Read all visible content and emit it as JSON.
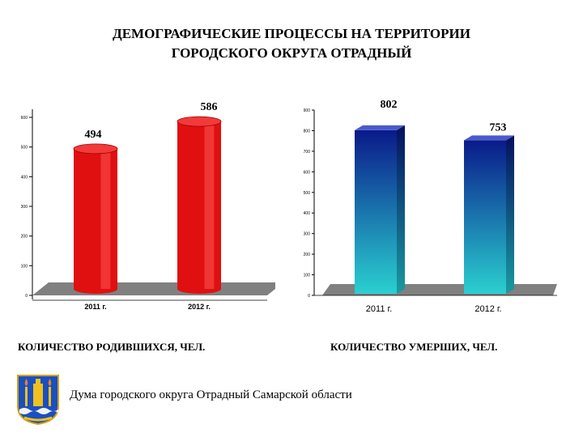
{
  "title": {
    "line1": "ДЕМОГРАФИЧЕСКИЕ ПРОЦЕССЫ  НА ТЕРРИТОРИИ",
    "line2": "ГОРОДСКОГО ОКРУГА ОТРАДНЫЙ"
  },
  "captions": {
    "births": "КОЛИЧЕСТВО РОДИВШИХСЯ, ЧЕЛ.",
    "deaths": "КОЛИЧЕСТВО УМЕРШИХ, ЧЕЛ."
  },
  "footer": {
    "text": "Дума городского округа Отрадный Самарской области"
  },
  "colors": {
    "births_bar": "#e01010",
    "deaths_bar_top": "#0a1a8a",
    "deaths_bar_bottom": "#2ad0d0",
    "floor": "#808080"
  },
  "chart_data": [
    {
      "type": "bar",
      "categories": [
        "2011 г.",
        "2012 г."
      ],
      "values": [
        494,
        586
      ],
      "ylim": [
        0,
        600
      ],
      "yticks": [
        0,
        100,
        200,
        300,
        400,
        500,
        600
      ],
      "title": "",
      "xlabel": "",
      "ylabel": ""
    },
    {
      "type": "bar",
      "categories": [
        "2011 г.",
        "2012 г."
      ],
      "values": [
        802,
        753
      ],
      "ylim": [
        0,
        900
      ],
      "yticks": [
        0,
        100,
        200,
        300,
        400,
        500,
        600,
        700,
        800,
        900
      ],
      "title": "",
      "xlabel": "",
      "ylabel": ""
    }
  ]
}
